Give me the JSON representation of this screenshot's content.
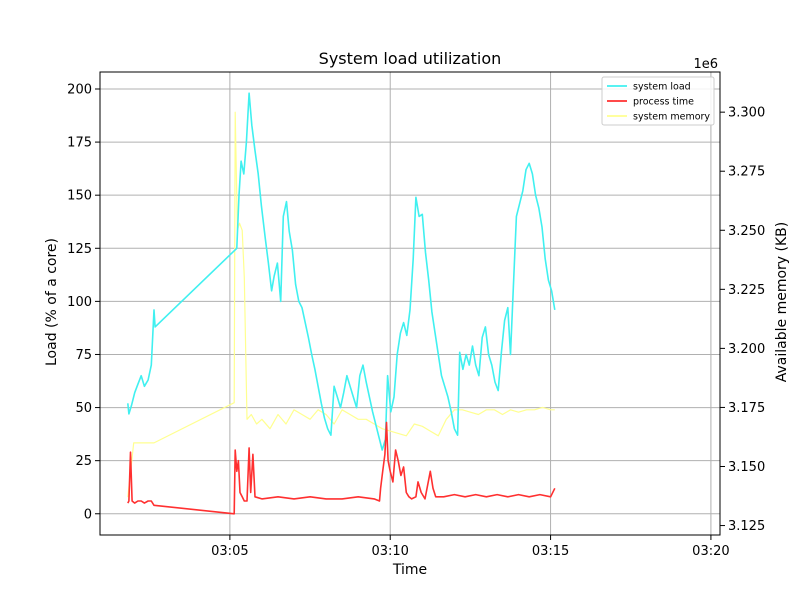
{
  "chart_data": {
    "type": "line",
    "title": "System load utilization",
    "xlabel": "Time",
    "ylabel": "Load (% of a core)",
    "y2label": "Available memory (KB)",
    "y2_offset_text": "1e6",
    "x_ticks": [
      "03:05",
      "03:10",
      "03:15",
      "03:20"
    ],
    "y_ticks": [
      "0",
      "25",
      "50",
      "75",
      "100",
      "125",
      "150",
      "175",
      "200"
    ],
    "y2_ticks": [
      "3.125",
      "3.150",
      "3.175",
      "3.200",
      "3.225",
      "3.250",
      "3.275",
      "3.300"
    ],
    "xlim": [
      "03:00:57",
      "03:20:17"
    ],
    "ylim": [
      -10,
      208
    ],
    "y2lim": [
      3.121,
      3.317
    ],
    "grid": true,
    "legend_position": "upper-right",
    "series": [
      {
        "name": "system load",
        "axis": "left",
        "color": "#40f0f0",
        "points": [
          [
            "03:01:49",
            52
          ],
          [
            "03:01:51",
            47
          ],
          [
            "03:01:56",
            51
          ],
          [
            "03:02:02",
            57
          ],
          [
            "03:02:08",
            61
          ],
          [
            "03:02:14",
            65
          ],
          [
            "03:02:20",
            60
          ],
          [
            "03:02:27",
            63
          ],
          [
            "03:02:33",
            70
          ],
          [
            "03:02:38",
            96
          ],
          [
            "03:02:40",
            88
          ],
          [
            "03:05:13",
            125
          ],
          [
            "03:05:17",
            150
          ],
          [
            "03:05:21",
            166
          ],
          [
            "03:05:26",
            160
          ],
          [
            "03:05:31",
            175
          ],
          [
            "03:05:36",
            198
          ],
          [
            "03:05:41",
            183
          ],
          [
            "03:05:47",
            171
          ],
          [
            "03:05:53",
            160
          ],
          [
            "03:05:59",
            145
          ],
          [
            "03:06:06",
            130
          ],
          [
            "03:06:12",
            118
          ],
          [
            "03:06:18",
            105
          ],
          [
            "03:06:23",
            112
          ],
          [
            "03:06:29",
            118
          ],
          [
            "03:06:35",
            100
          ],
          [
            "03:06:40",
            140
          ],
          [
            "03:06:46",
            147
          ],
          [
            "03:06:51",
            133
          ],
          [
            "03:06:57",
            124
          ],
          [
            "03:07:03",
            108
          ],
          [
            "03:07:09",
            100
          ],
          [
            "03:07:15",
            97
          ],
          [
            "03:07:21",
            90
          ],
          [
            "03:07:27",
            83
          ],
          [
            "03:07:33",
            75
          ],
          [
            "03:07:39",
            68
          ],
          [
            "03:07:45",
            60
          ],
          [
            "03:07:51",
            52
          ],
          [
            "03:07:57",
            45
          ],
          [
            "03:08:03",
            40
          ],
          [
            "03:08:09",
            37
          ],
          [
            "03:08:15",
            60
          ],
          [
            "03:08:21",
            55
          ],
          [
            "03:08:27",
            50
          ],
          [
            "03:08:33",
            57
          ],
          [
            "03:08:39",
            65
          ],
          [
            "03:08:45",
            60
          ],
          [
            "03:08:51",
            55
          ],
          [
            "03:08:57",
            50
          ],
          [
            "03:09:03",
            65
          ],
          [
            "03:09:09",
            70
          ],
          [
            "03:09:15",
            62
          ],
          [
            "03:09:21",
            55
          ],
          [
            "03:09:27",
            48
          ],
          [
            "03:09:33",
            42
          ],
          [
            "03:09:39",
            36
          ],
          [
            "03:09:45",
            30
          ],
          [
            "03:09:51",
            35
          ],
          [
            "03:09:55",
            65
          ],
          [
            "03:10:01",
            48
          ],
          [
            "03:10:07",
            55
          ],
          [
            "03:10:13",
            75
          ],
          [
            "03:10:19",
            85
          ],
          [
            "03:10:25",
            90
          ],
          [
            "03:10:31",
            84
          ],
          [
            "03:10:37",
            96
          ],
          [
            "03:10:43",
            120
          ],
          [
            "03:10:48",
            149
          ],
          [
            "03:10:54",
            140
          ],
          [
            "03:11:00",
            141
          ],
          [
            "03:11:06",
            123
          ],
          [
            "03:11:12",
            110
          ],
          [
            "03:11:18",
            95
          ],
          [
            "03:11:24",
            85
          ],
          [
            "03:11:30",
            75
          ],
          [
            "03:11:36",
            65
          ],
          [
            "03:11:42",
            60
          ],
          [
            "03:11:48",
            55
          ],
          [
            "03:11:54",
            48
          ],
          [
            "03:12:00",
            40
          ],
          [
            "03:12:06",
            37
          ],
          [
            "03:12:10",
            76
          ],
          [
            "03:12:16",
            68
          ],
          [
            "03:12:22",
            75
          ],
          [
            "03:12:28",
            70
          ],
          [
            "03:12:34",
            79
          ],
          [
            "03:12:40",
            70
          ],
          [
            "03:12:46",
            65
          ],
          [
            "03:12:52",
            83
          ],
          [
            "03:12:58",
            88
          ],
          [
            "03:13:04",
            75
          ],
          [
            "03:13:10",
            70
          ],
          [
            "03:13:16",
            62
          ],
          [
            "03:13:22",
            58
          ],
          [
            "03:13:28",
            76
          ],
          [
            "03:13:34",
            91
          ],
          [
            "03:13:40",
            97
          ],
          [
            "03:13:45",
            75
          ],
          [
            "03:13:50",
            105
          ],
          [
            "03:13:56",
            140
          ],
          [
            "03:14:02",
            146
          ],
          [
            "03:14:08",
            152
          ],
          [
            "03:14:14",
            162
          ],
          [
            "03:14:20",
            165
          ],
          [
            "03:14:26",
            160
          ],
          [
            "03:14:32",
            150
          ],
          [
            "03:14:38",
            144
          ],
          [
            "03:14:44",
            135
          ],
          [
            "03:14:50",
            120
          ],
          [
            "03:14:56",
            110
          ],
          [
            "03:15:02",
            105
          ],
          [
            "03:15:08",
            96
          ]
        ]
      },
      {
        "name": "process time",
        "axis": "left",
        "color": "#ff3030",
        "points": [
          [
            "03:01:49",
            5
          ],
          [
            "03:01:51",
            6
          ],
          [
            "03:01:54",
            29
          ],
          [
            "03:01:57",
            6
          ],
          [
            "03:02:02",
            5
          ],
          [
            "03:02:08",
            6
          ],
          [
            "03:02:14",
            6
          ],
          [
            "03:02:20",
            5
          ],
          [
            "03:02:27",
            6
          ],
          [
            "03:02:33",
            6
          ],
          [
            "03:02:38",
            4
          ],
          [
            "03:05:08",
            0
          ],
          [
            "03:05:10",
            30
          ],
          [
            "03:05:13",
            20
          ],
          [
            "03:05:16",
            25
          ],
          [
            "03:05:19",
            10
          ],
          [
            "03:05:23",
            8
          ],
          [
            "03:05:27",
            6
          ],
          [
            "03:05:32",
            6
          ],
          [
            "03:05:36",
            31
          ],
          [
            "03:05:39",
            10
          ],
          [
            "03:05:43",
            28
          ],
          [
            "03:05:47",
            8
          ],
          [
            "03:06:00",
            7
          ],
          [
            "03:06:30",
            8
          ],
          [
            "03:07:00",
            7
          ],
          [
            "03:07:30",
            8
          ],
          [
            "03:08:00",
            7
          ],
          [
            "03:08:30",
            7
          ],
          [
            "03:09:00",
            8
          ],
          [
            "03:09:30",
            7
          ],
          [
            "03:09:40",
            6
          ],
          [
            "03:09:42",
            12
          ],
          [
            "03:09:46",
            20
          ],
          [
            "03:09:50",
            28
          ],
          [
            "03:09:53",
            43
          ],
          [
            "03:09:56",
            25
          ],
          [
            "03:10:00",
            20
          ],
          [
            "03:10:05",
            15
          ],
          [
            "03:10:10",
            30
          ],
          [
            "03:10:15",
            25
          ],
          [
            "03:10:20",
            18
          ],
          [
            "03:10:25",
            22
          ],
          [
            "03:10:30",
            10
          ],
          [
            "03:10:35",
            8
          ],
          [
            "03:10:40",
            7
          ],
          [
            "03:10:48",
            8
          ],
          [
            "03:10:52",
            15
          ],
          [
            "03:10:58",
            10
          ],
          [
            "03:11:05",
            7
          ],
          [
            "03:11:15",
            20
          ],
          [
            "03:11:20",
            12
          ],
          [
            "03:11:25",
            8
          ],
          [
            "03:11:40",
            8
          ],
          [
            "03:12:00",
            9
          ],
          [
            "03:12:20",
            8
          ],
          [
            "03:12:40",
            9
          ],
          [
            "03:13:00",
            8
          ],
          [
            "03:13:20",
            9
          ],
          [
            "03:13:40",
            8
          ],
          [
            "03:14:00",
            9
          ],
          [
            "03:14:20",
            8
          ],
          [
            "03:14:40",
            9
          ],
          [
            "03:15:00",
            8
          ],
          [
            "03:15:08",
            12
          ]
        ]
      },
      {
        "name": "system memory",
        "axis": "right",
        "color": "#ffff90",
        "points": [
          [
            "03:01:49",
            3.137
          ],
          [
            "03:02:00",
            3.16
          ],
          [
            "03:02:38",
            3.16
          ],
          [
            "03:05:08",
            3.177
          ],
          [
            "03:05:10",
            3.3
          ],
          [
            "03:05:14",
            3.25
          ],
          [
            "03:05:18",
            3.253
          ],
          [
            "03:05:23",
            3.25
          ],
          [
            "03:05:27",
            3.23
          ],
          [
            "03:05:32",
            3.17
          ],
          [
            "03:05:40",
            3.172
          ],
          [
            "03:05:50",
            3.168
          ],
          [
            "03:06:00",
            3.17
          ],
          [
            "03:06:15",
            3.166
          ],
          [
            "03:06:30",
            3.172
          ],
          [
            "03:06:45",
            3.168
          ],
          [
            "03:07:00",
            3.174
          ],
          [
            "03:07:15",
            3.172
          ],
          [
            "03:07:30",
            3.17
          ],
          [
            "03:07:45",
            3.174
          ],
          [
            "03:08:00",
            3.172
          ],
          [
            "03:08:15",
            3.168
          ],
          [
            "03:08:30",
            3.174
          ],
          [
            "03:08:45",
            3.172
          ],
          [
            "03:09:00",
            3.17
          ],
          [
            "03:09:15",
            3.17
          ],
          [
            "03:09:30",
            3.168
          ],
          [
            "03:09:45",
            3.166
          ],
          [
            "03:10:00",
            3.165
          ],
          [
            "03:10:15",
            3.164
          ],
          [
            "03:10:30",
            3.163
          ],
          [
            "03:10:45",
            3.168
          ],
          [
            "03:11:00",
            3.167
          ],
          [
            "03:11:15",
            3.165
          ],
          [
            "03:11:30",
            3.163
          ],
          [
            "03:11:45",
            3.17
          ],
          [
            "03:12:00",
            3.174
          ],
          [
            "03:12:15",
            3.174
          ],
          [
            "03:12:30",
            3.173
          ],
          [
            "03:12:45",
            3.172
          ],
          [
            "03:13:00",
            3.174
          ],
          [
            "03:13:15",
            3.174
          ],
          [
            "03:13:30",
            3.172
          ],
          [
            "03:13:45",
            3.174
          ],
          [
            "03:14:00",
            3.173
          ],
          [
            "03:14:15",
            3.174
          ],
          [
            "03:14:30",
            3.174
          ],
          [
            "03:14:45",
            3.175
          ],
          [
            "03:15:00",
            3.174
          ],
          [
            "03:15:08",
            3.174
          ]
        ]
      }
    ]
  }
}
